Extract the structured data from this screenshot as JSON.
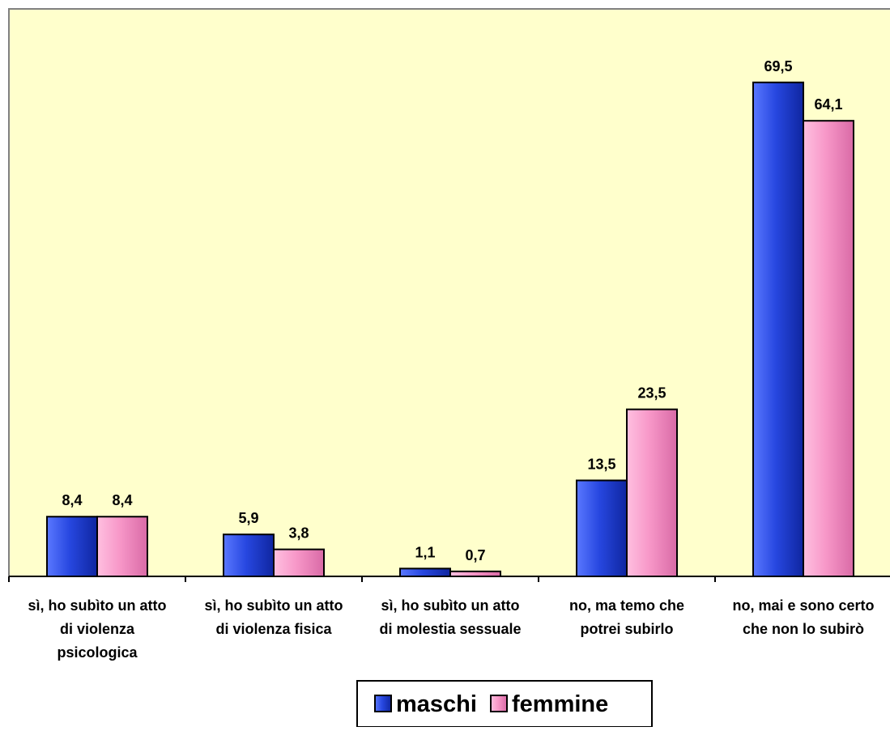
{
  "chart_data": {
    "type": "bar",
    "title": "",
    "xlabel": "",
    "ylabel": "",
    "ylim": [
      0,
      80
    ],
    "grid": false,
    "legend_position": "bottom",
    "categories": [
      [
        "sì, ho subìto un atto",
        "di violenza",
        "psicologica"
      ],
      [
        "sì, ho subìto un atto",
        "di violenza fisica"
      ],
      [
        "sì, ho subìto un atto",
        "di molestia sessuale"
      ],
      [
        "no, ma temo che",
        "potrei subirlo"
      ],
      [
        "no, mai e sono certo",
        "che non lo subirò"
      ]
    ],
    "series": [
      {
        "name": "maschi",
        "color": "#1f3fd6",
        "values": [
          8.4,
          5.9,
          1.1,
          13.5,
          69.5
        ],
        "labels": [
          "8,4",
          "5,9",
          "1,1",
          "13,5",
          "69,5"
        ]
      },
      {
        "name": "femmine",
        "color": "#f48fc2",
        "values": [
          8.4,
          3.8,
          0.7,
          23.5,
          64.1
        ],
        "labels": [
          "8,4",
          "3,8",
          "0,7",
          "23,5",
          "64,1"
        ]
      }
    ],
    "plot_background": "#ffffcc"
  }
}
